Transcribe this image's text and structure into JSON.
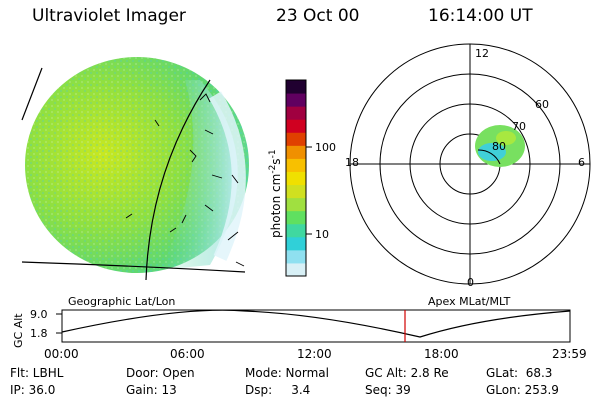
{
  "header": {
    "app_title": "Ultraviolet Imager",
    "date": "23 Oct 00",
    "time": "16:14:00 UT"
  },
  "colorbar": {
    "label_text": "photon cm",
    "label_sup1": "-2",
    "label_mid": "s",
    "label_sup2": "-1",
    "ticks": [
      "100",
      "10"
    ],
    "colors": [
      "#d8f0f6",
      "#8fe0f0",
      "#30d0d8",
      "#40d8a0",
      "#60e060",
      "#a0e040",
      "#d0e020",
      "#f0e000",
      "#f8c000",
      "#f09000",
      "#e04000",
      "#d00020",
      "#a00040",
      "#600060",
      "#200030"
    ]
  },
  "polar": {
    "mlt_labels": [
      "12",
      "18",
      "6",
      "0"
    ],
    "lat_labels": [
      "60",
      "70",
      "80"
    ]
  },
  "map_labels": {
    "left": "Geographic Lat/Lon",
    "right": "Apex MLat/MLT"
  },
  "altitude_plot": {
    "ylabel": "GC Alt",
    "ticks": [
      "9.0",
      "1.8"
    ],
    "time_ticks": [
      "00:00",
      "06:00",
      "12:00",
      "18:00",
      "23:59"
    ],
    "marker_time": "16:14"
  },
  "info": {
    "row1": {
      "flt": "Flt: LBHL",
      "door": "Door: Open",
      "mode": "Mode: Normal",
      "gcalt": "GC Alt: 2.8 Re",
      "glat": "GLat:  68.3"
    },
    "row2": {
      "ip": "IP: 36.0",
      "gain": "Gain: 13",
      "dsp": "Dsp:     3.4",
      "seq": "Seq: 39",
      "glon": "GLon: 253.9"
    }
  }
}
